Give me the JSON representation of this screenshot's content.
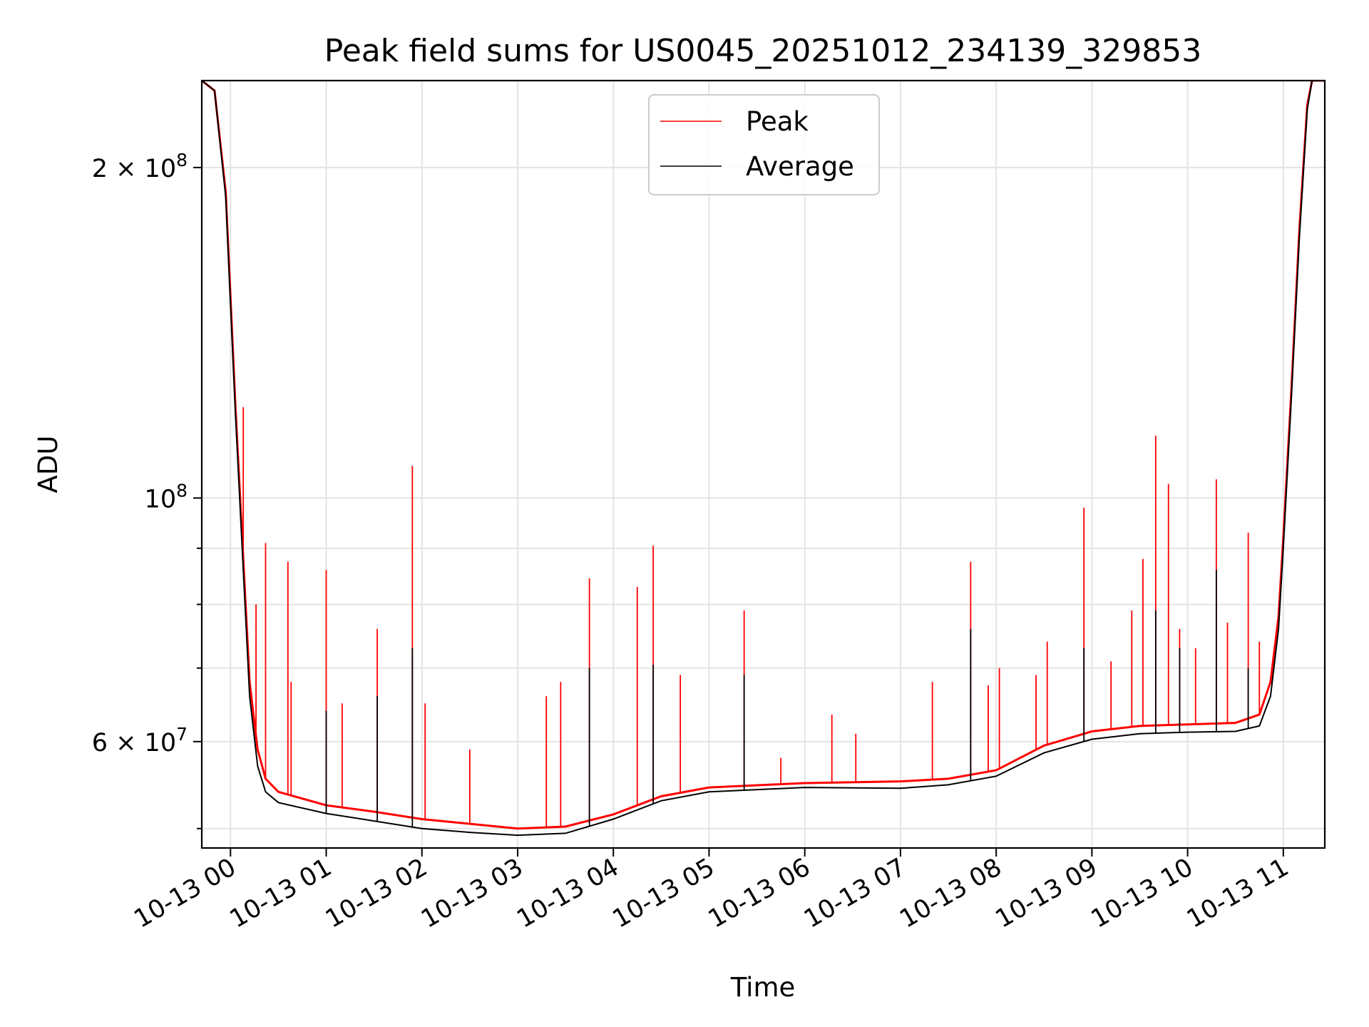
{
  "chart_data": {
    "type": "line",
    "title": "Peak field sums for US0045_20251012_234139_329853",
    "xlabel": "Time",
    "ylabel": "ADU",
    "y_scale": "log",
    "ylim": [
      48000000,
      240000000
    ],
    "xlim": [
      "2025-10-12 23:42",
      "2025-10-13 11:26"
    ],
    "grid": true,
    "legend_position": "upper-center",
    "x_ticks": [
      {
        "t": "2025-10-13 00:00",
        "label": "10-13 00"
      },
      {
        "t": "2025-10-13 01:00",
        "label": "10-13 01"
      },
      {
        "t": "2025-10-13 02:00",
        "label": "10-13 02"
      },
      {
        "t": "2025-10-13 03:00",
        "label": "10-13 03"
      },
      {
        "t": "2025-10-13 04:00",
        "label": "10-13 04"
      },
      {
        "t": "2025-10-13 05:00",
        "label": "10-13 05"
      },
      {
        "t": "2025-10-13 06:00",
        "label": "10-13 06"
      },
      {
        "t": "2025-10-13 07:00",
        "label": "10-13 07"
      },
      {
        "t": "2025-10-13 08:00",
        "label": "10-13 08"
      },
      {
        "t": "2025-10-13 09:00",
        "label": "10-13 09"
      },
      {
        "t": "2025-10-13 10:00",
        "label": "10-13 10"
      },
      {
        "t": "2025-10-13 11:00",
        "label": "10-13 11"
      }
    ],
    "y_major_ticks": [
      {
        "v": 100000000,
        "base": "10",
        "exp": "8"
      },
      {
        "v": 200000000,
        "mantissa": "2",
        "base": "10",
        "exp": "8"
      },
      {
        "v": 60000000,
        "mantissa": "6",
        "base": "10",
        "exp": "7"
      }
    ],
    "y_minor_ticks": [
      50000000,
      70000000,
      80000000,
      90000000
    ],
    "series": [
      {
        "name": "Peak",
        "color": "#ff0000",
        "points": [
          [
            "2025-10-12 23:42",
            240000000
          ],
          [
            "2025-10-12 23:50",
            235000000
          ],
          [
            "2025-10-12 23:57",
            190000000
          ],
          [
            "2025-10-13 00:03",
            122000000
          ],
          [
            "2025-10-13 00:08",
            88000000
          ],
          [
            "2025-10-13 00:12",
            68000000
          ],
          [
            "2025-10-13 00:17",
            59000000
          ],
          [
            "2025-10-13 00:22",
            55500000
          ],
          [
            "2025-10-13 00:30",
            54000000
          ],
          [
            "2025-10-13 01:00",
            52500000
          ],
          [
            "2025-10-13 01:30",
            51800000
          ],
          [
            "2025-10-13 02:00",
            51000000
          ],
          [
            "2025-10-13 02:30",
            50500000
          ],
          [
            "2025-10-13 03:00",
            50000000
          ],
          [
            "2025-10-13 03:30",
            50200000
          ],
          [
            "2025-10-13 04:00",
            51500000
          ],
          [
            "2025-10-13 04:30",
            53500000
          ],
          [
            "2025-10-13 05:00",
            54500000
          ],
          [
            "2025-10-13 06:00",
            55000000
          ],
          [
            "2025-10-13 07:00",
            55200000
          ],
          [
            "2025-10-13 07:30",
            55500000
          ],
          [
            "2025-10-13 08:00",
            56500000
          ],
          [
            "2025-10-13 08:30",
            59500000
          ],
          [
            "2025-10-13 09:00",
            61300000
          ],
          [
            "2025-10-13 09:30",
            62000000
          ],
          [
            "2025-10-13 10:00",
            62200000
          ],
          [
            "2025-10-13 10:30",
            62400000
          ],
          [
            "2025-10-13 10:45",
            63500000
          ],
          [
            "2025-10-13 10:52",
            68000000
          ],
          [
            "2025-10-13 10:57",
            78000000
          ],
          [
            "2025-10-13 11:00",
            92000000
          ],
          [
            "2025-10-13 11:05",
            125000000
          ],
          [
            "2025-10-13 11:10",
            175000000
          ],
          [
            "2025-10-13 11:15",
            228000000
          ],
          [
            "2025-10-13 11:18",
            240000000
          ],
          [
            "2025-10-13 11:26",
            240000000
          ]
        ],
        "spikes": [
          [
            "2025-10-13 00:08",
            121000000
          ],
          [
            "2025-10-13 00:16",
            80000000
          ],
          [
            "2025-10-13 00:22",
            91000000
          ],
          [
            "2025-10-13 00:36",
            87500000
          ],
          [
            "2025-10-13 00:38",
            68000000
          ],
          [
            "2025-10-13 01:00",
            86000000
          ],
          [
            "2025-10-13 01:10",
            65000000
          ],
          [
            "2025-10-13 01:32",
            76000000
          ],
          [
            "2025-10-13 01:54",
            107000000
          ],
          [
            "2025-10-13 02:02",
            65000000
          ],
          [
            "2025-10-13 02:30",
            59000000
          ],
          [
            "2025-10-13 03:18",
            66000000
          ],
          [
            "2025-10-13 03:27",
            68000000
          ],
          [
            "2025-10-13 03:45",
            84500000
          ],
          [
            "2025-10-13 04:15",
            83000000
          ],
          [
            "2025-10-13 04:25",
            90500000
          ],
          [
            "2025-10-13 04:42",
            69000000
          ],
          [
            "2025-10-13 05:22",
            79000000
          ],
          [
            "2025-10-13 05:45",
            58000000
          ],
          [
            "2025-10-13 06:17",
            63500000
          ],
          [
            "2025-10-13 06:32",
            61000000
          ],
          [
            "2025-10-13 07:20",
            68000000
          ],
          [
            "2025-10-13 07:44",
            87500000
          ],
          [
            "2025-10-13 07:55",
            67500000
          ],
          [
            "2025-10-13 08:02",
            70000000
          ],
          [
            "2025-10-13 08:25",
            69000000
          ],
          [
            "2025-10-13 08:32",
            74000000
          ],
          [
            "2025-10-13 08:55",
            98000000
          ],
          [
            "2025-10-13 09:12",
            71000000
          ],
          [
            "2025-10-13 09:25",
            79000000
          ],
          [
            "2025-10-13 09:32",
            88000000
          ],
          [
            "2025-10-13 09:40",
            114000000
          ],
          [
            "2025-10-13 09:48",
            103000000
          ],
          [
            "2025-10-13 09:55",
            76000000
          ],
          [
            "2025-10-13 10:05",
            73000000
          ],
          [
            "2025-10-13 10:18",
            104000000
          ],
          [
            "2025-10-13 10:25",
            77000000
          ],
          [
            "2025-10-13 10:38",
            93000000
          ],
          [
            "2025-10-13 10:45",
            74000000
          ]
        ]
      },
      {
        "name": "Average",
        "color": "#000000",
        "points": [
          [
            "2025-10-12 23:42",
            240000000
          ],
          [
            "2025-10-12 23:50",
            235000000
          ],
          [
            "2025-10-12 23:57",
            188000000
          ],
          [
            "2025-10-13 00:03",
            120000000
          ],
          [
            "2025-10-13 00:08",
            86000000
          ],
          [
            "2025-10-13 00:12",
            66000000
          ],
          [
            "2025-10-13 00:17",
            57000000
          ],
          [
            "2025-10-13 00:22",
            54000000
          ],
          [
            "2025-10-13 00:30",
            52800000
          ],
          [
            "2025-10-13 01:00",
            51600000
          ],
          [
            "2025-10-13 01:30",
            50800000
          ],
          [
            "2025-10-13 02:00",
            50000000
          ],
          [
            "2025-10-13 02:30",
            49600000
          ],
          [
            "2025-10-13 03:00",
            49300000
          ],
          [
            "2025-10-13 03:30",
            49500000
          ],
          [
            "2025-10-13 04:00",
            51000000
          ],
          [
            "2025-10-13 04:30",
            53000000
          ],
          [
            "2025-10-13 05:00",
            54000000
          ],
          [
            "2025-10-13 06:00",
            54500000
          ],
          [
            "2025-10-13 07:00",
            54400000
          ],
          [
            "2025-10-13 07:30",
            54800000
          ],
          [
            "2025-10-13 08:00",
            55800000
          ],
          [
            "2025-10-13 08:30",
            58600000
          ],
          [
            "2025-10-13 09:00",
            60300000
          ],
          [
            "2025-10-13 09:30",
            61000000
          ],
          [
            "2025-10-13 10:00",
            61200000
          ],
          [
            "2025-10-13 10:30",
            61300000
          ],
          [
            "2025-10-13 10:45",
            62000000
          ],
          [
            "2025-10-13 10:52",
            66000000
          ],
          [
            "2025-10-13 10:57",
            76000000
          ],
          [
            "2025-10-13 11:00",
            90000000
          ],
          [
            "2025-10-13 11:05",
            123000000
          ],
          [
            "2025-10-13 11:10",
            172000000
          ],
          [
            "2025-10-13 11:15",
            226000000
          ],
          [
            "2025-10-13 11:18",
            240000000
          ],
          [
            "2025-10-13 11:26",
            240000000
          ]
        ],
        "spikes": [
          [
            "2025-10-13 01:00",
            64000000
          ],
          [
            "2025-10-13 01:32",
            66000000
          ],
          [
            "2025-10-13 01:54",
            73000000
          ],
          [
            "2025-10-13 03:45",
            70000000
          ],
          [
            "2025-10-13 04:25",
            70500000
          ],
          [
            "2025-10-13 05:22",
            69000000
          ],
          [
            "2025-10-13 07:44",
            76000000
          ],
          [
            "2025-10-13 08:55",
            73000000
          ],
          [
            "2025-10-13 09:40",
            79000000
          ],
          [
            "2025-10-13 09:55",
            73000000
          ],
          [
            "2025-10-13 10:18",
            86000000
          ],
          [
            "2025-10-13 10:38",
            70000000
          ]
        ]
      }
    ]
  }
}
